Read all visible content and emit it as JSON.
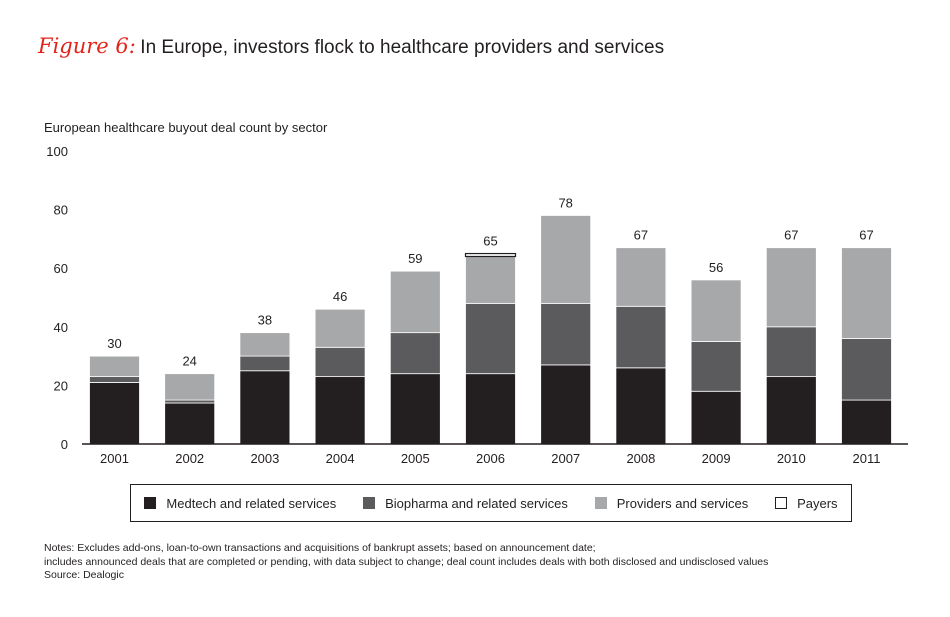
{
  "figure": {
    "label": "Figure 6:",
    "title": "In Europe, investors flock to healthcare providers and services"
  },
  "chart_data": {
    "type": "bar",
    "stacked": true,
    "subtitle": "European healthcare buyout deal count by sector",
    "categories": [
      "2001",
      "2002",
      "2003",
      "2004",
      "2005",
      "2006",
      "2007",
      "2008",
      "2009",
      "2010",
      "2011"
    ],
    "series": [
      {
        "name": "Medtech and related services",
        "color": "#231f20",
        "values": [
          21,
          14,
          25,
          23,
          24,
          24,
          27,
          26,
          18,
          23,
          15
        ]
      },
      {
        "name": "Biopharma and related services",
        "color": "#5b5b5d",
        "values": [
          2,
          1,
          5,
          10,
          14,
          24,
          21,
          21,
          17,
          17,
          21
        ]
      },
      {
        "name": "Providers and services",
        "color": "#a7a8aa",
        "values": [
          7,
          9,
          8,
          13,
          21,
          16,
          30,
          20,
          21,
          27,
          31
        ]
      },
      {
        "name": "Payers",
        "color": "#ffffff",
        "values": [
          0,
          0,
          0,
          0,
          0,
          1,
          0,
          0,
          0,
          0,
          0
        ]
      }
    ],
    "totals": [
      "30",
      "24",
      "38",
      "46",
      "59",
      "65",
      "78",
      "67",
      "56",
      "67",
      "67"
    ],
    "ylim": [
      0,
      100
    ],
    "yticks": [
      "0",
      "20",
      "40",
      "60",
      "80",
      "100"
    ],
    "xlabel": "",
    "ylabel": "",
    "grid": false,
    "legend_position": "bottom"
  },
  "notes": {
    "line1": "Notes: Excludes add-ons, loan-to-own transactions and acquisitions of bankrupt assets; based on announcement date;",
    "line2": "includes announced deals that are completed or pending, with data subject to change; deal count includes deals with both disclosed and undisclosed values",
    "source": "Source: Dealogic"
  }
}
